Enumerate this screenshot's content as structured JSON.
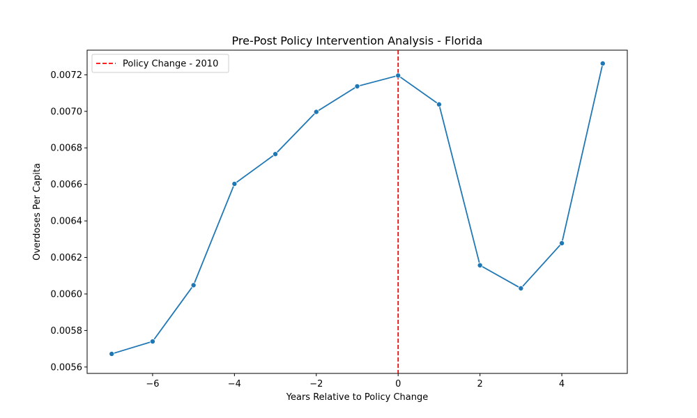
{
  "chart_data": {
    "type": "line",
    "title": "Pre-Post Policy Intervention Analysis - Florida",
    "xlabel": "Years Relative to Policy Change",
    "ylabel": "Overdoses Per Capita",
    "xlim": [
      -7.6,
      5.6
    ],
    "ylim": [
      0.005565,
      0.007335
    ],
    "x_ticks": [
      -6,
      -4,
      -2,
      0,
      2,
      4
    ],
    "x_tick_labels": [
      "−6",
      "−4",
      "−2",
      "0",
      "2",
      "4"
    ],
    "y_ticks": [
      0.0056,
      0.0058,
      0.006,
      0.0062,
      0.0064,
      0.0066,
      0.0068,
      0.007,
      0.0072
    ],
    "y_tick_labels": [
      "0.0056",
      "0.0058",
      "0.0060",
      "0.0062",
      "0.0064",
      "0.0066",
      "0.0068",
      "0.0070",
      "0.0072"
    ],
    "grid": false,
    "series": [
      {
        "color": "#1f77b4",
        "x": [
          -7,
          -6,
          -5,
          -4,
          -3,
          -2,
          -1,
          0,
          1,
          2,
          3,
          4,
          5
        ],
        "y": [
          0.005672,
          0.00574,
          0.006048,
          0.006603,
          0.006766,
          0.006997,
          0.007137,
          0.007196,
          0.007038,
          0.006157,
          0.006031,
          0.006278,
          0.007262
        ]
      }
    ],
    "vline": {
      "x": 0,
      "label": "Policy Change - 2010",
      "color": "#ff0000",
      "style": "dashed"
    },
    "legend": {
      "placement": "top-left",
      "entries": [
        "Policy Change - 2010"
      ]
    }
  }
}
